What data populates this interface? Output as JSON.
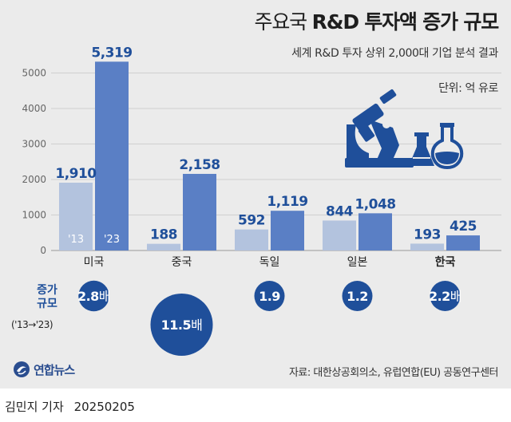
{
  "header": {
    "title_light": "주요국",
    "title_bold": "R&D 투자액 증가 규모",
    "subtitle": "세계 R&D 투자 상위 2,000대 기업 분석 결과",
    "unit": "단위: 억 유로"
  },
  "chart_data": {
    "type": "bar",
    "categories": [
      "미국",
      "중국",
      "독일",
      "일본",
      "한국"
    ],
    "highlight_category": "한국",
    "series": [
      {
        "name": "'13",
        "values": [
          1910,
          188,
          592,
          844,
          193
        ],
        "color": "#b3c3de"
      },
      {
        "name": "'23",
        "values": [
          5319,
          2158,
          1119,
          1048,
          425
        ],
        "color": "#5a7fc5"
      }
    ],
    "value_labels": [
      [
        "1,910",
        "5,319"
      ],
      [
        "188",
        "2,158"
      ],
      [
        "592",
        "1,119"
      ],
      [
        "844",
        "1,048"
      ],
      [
        "193",
        "425"
      ]
    ],
    "ylim": [
      0,
      5500
    ],
    "yticks": [
      0,
      1000,
      2000,
      3000,
      4000,
      5000
    ],
    "ytick_labels": [
      "0",
      "1000",
      "2000",
      "3000",
      "4000",
      "5000"
    ],
    "grid": true,
    "in_bar_labels": [
      "'13",
      "'23"
    ],
    "growth_multiple": [
      2.8,
      11.5,
      1.9,
      1.2,
      2.2
    ],
    "growth_labels": [
      {
        "num": "2.8",
        "suffix": "배"
      },
      {
        "num": "11.5",
        "suffix": "배"
      },
      {
        "num": "1.9",
        "suffix": ""
      },
      {
        "num": "1.2",
        "suffix": ""
      },
      {
        "num": "2.2",
        "suffix": "배"
      }
    ]
  },
  "growth_section": {
    "label_line1": "증가",
    "label_line2": "규모",
    "period": "('13→'23)"
  },
  "colors": {
    "background": "#ebebeb",
    "bar_2013": "#b3c3de",
    "bar_2023": "#5a7fc5",
    "value_label": "#1f4f9a",
    "bubble": "#1f4f9a",
    "icon": "#1f4f9a"
  },
  "icons": [
    "microscope-icon",
    "flask-icon",
    "yonhap-logo-icon"
  ],
  "footer": {
    "logo_text": "연합뉴스",
    "source": "자료: 대한상공회의소, 유럽연합(EU) 공동연구센터"
  },
  "byline": {
    "author": "김민지 기자",
    "date": "20250205"
  }
}
